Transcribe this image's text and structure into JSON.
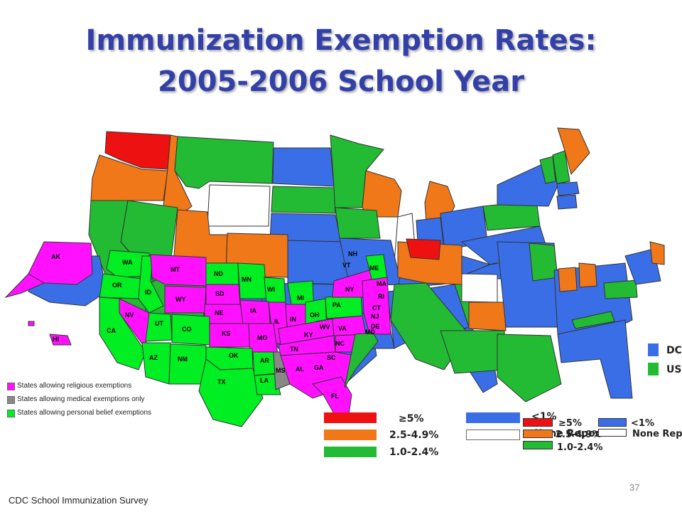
{
  "title": {
    "line1": "Immunization Exemption Rates:",
    "line2": "2005-2006 School Year"
  },
  "colors": {
    "ge5": "#ee1111",
    "r25_49": "#f07818",
    "r10_24": "#22bb33",
    "lt1": "#3a6ee6",
    "none": "#ffffff",
    "religious": "#ff11ff",
    "medical_only": "#888888",
    "personal_belief": "#00ee22"
  },
  "legend_rates_main": [
    {
      "label": "≥5%",
      "color": "#ee1111"
    },
    {
      "label": "2.5-4.9%",
      "color": "#f07818"
    },
    {
      "label": "1.0-2.4%",
      "color": "#22bb33"
    },
    {
      "label": "<1%",
      "color": "#3a6ee6"
    },
    {
      "label": "None Reported",
      "color": "#ffffff"
    }
  ],
  "legend_rates_overlay": [
    {
      "label": "≥5%",
      "color": "#ee1111"
    },
    {
      "label": "2.5-4.9%",
      "color": "#f07818"
    },
    {
      "label": "1.0-2.4%",
      "color": "#22bb33"
    },
    {
      "label": "<1%",
      "color": "#3a6ee6"
    },
    {
      "label": "None Rep",
      "color": "#ffffff"
    }
  ],
  "legend_exemptions": [
    {
      "label": "States allowing religious exemptions",
      "color": "#ff11ff"
    },
    {
      "label": "States allowing medical exemptions only",
      "color": "#888888"
    },
    {
      "label": "States allowing personal belief exemptions",
      "color": "#00ee22"
    }
  ],
  "side_labels": [
    "DC",
    "US"
  ],
  "state_labels": [
    "AK",
    "HI",
    "WA",
    "OR",
    "ID",
    "MT",
    "WY",
    "ND",
    "SD",
    "NE",
    "MN",
    "IA",
    "WI",
    "MI",
    "IL",
    "IN",
    "OH",
    "PA",
    "NY",
    "NV",
    "CA",
    "UT",
    "CO",
    "KS",
    "MO",
    "KY",
    "WV",
    "VA",
    "NC",
    "TN",
    "SC",
    "GA",
    "AL",
    "MS",
    "AR",
    "LA",
    "OK",
    "TX",
    "NM",
    "AZ",
    "FL",
    "NH",
    "VT",
    "ME",
    "MA",
    "RI",
    "CT",
    "NJ",
    "DE",
    "MD"
  ],
  "source": "CDC School Immunization Survey",
  "page_number": "37"
}
